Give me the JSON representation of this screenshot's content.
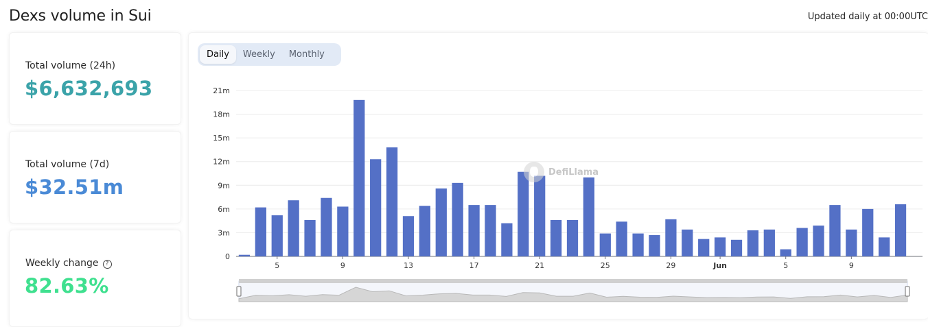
{
  "header": {
    "title": "Dexs volume in Sui",
    "updated": "Updated daily at 00:00UTC"
  },
  "stats": [
    {
      "label": "Total volume (24h)",
      "value": "$6,632,693",
      "color": "#3ba3a9"
    },
    {
      "label": "Total volume (7d)",
      "value": "$32.51m",
      "color": "#4a8ad6"
    },
    {
      "label": "Weekly change",
      "value": "82.63%",
      "color": "#3fe08f"
    }
  ],
  "tabs": [
    {
      "label": "Daily",
      "active": true
    },
    {
      "label": "Weekly",
      "active": false
    },
    {
      "label": "Monthly",
      "active": false
    }
  ],
  "watermark": "DefiLlama",
  "chart_data": {
    "type": "bar",
    "bar_color": "#5470c6",
    "y_tick_labels": [
      "0",
      "3m",
      "6m",
      "9m",
      "12m",
      "15m",
      "18m",
      "21m"
    ],
    "y_ticks": [
      0,
      3,
      6,
      9,
      12,
      15,
      18,
      21
    ],
    "ylim": [
      0,
      21
    ],
    "y_unit": "m",
    "x_tick_labels": [
      {
        "index": 2,
        "label": "5"
      },
      {
        "index": 6,
        "label": "9"
      },
      {
        "index": 10,
        "label": "13"
      },
      {
        "index": 14,
        "label": "17"
      },
      {
        "index": 18,
        "label": "21"
      },
      {
        "index": 22,
        "label": "25"
      },
      {
        "index": 26,
        "label": "29"
      },
      {
        "index": 29,
        "label": "Jun",
        "bold": true
      },
      {
        "index": 33,
        "label": "5"
      },
      {
        "index": 37,
        "label": "9"
      }
    ],
    "values": [
      0.2,
      6.2,
      5.2,
      7.1,
      4.6,
      7.4,
      6.3,
      19.8,
      12.3,
      13.8,
      5.1,
      6.4,
      8.6,
      9.3,
      6.5,
      6.5,
      4.2,
      10.7,
      10.2,
      4.6,
      4.6,
      10.0,
      2.9,
      4.4,
      2.9,
      2.7,
      4.7,
      3.4,
      2.2,
      2.4,
      2.1,
      3.3,
      3.4,
      0.9,
      3.6,
      3.9,
      6.5,
      3.4,
      6.0,
      2.4,
      6.6
    ],
    "grid": true
  }
}
